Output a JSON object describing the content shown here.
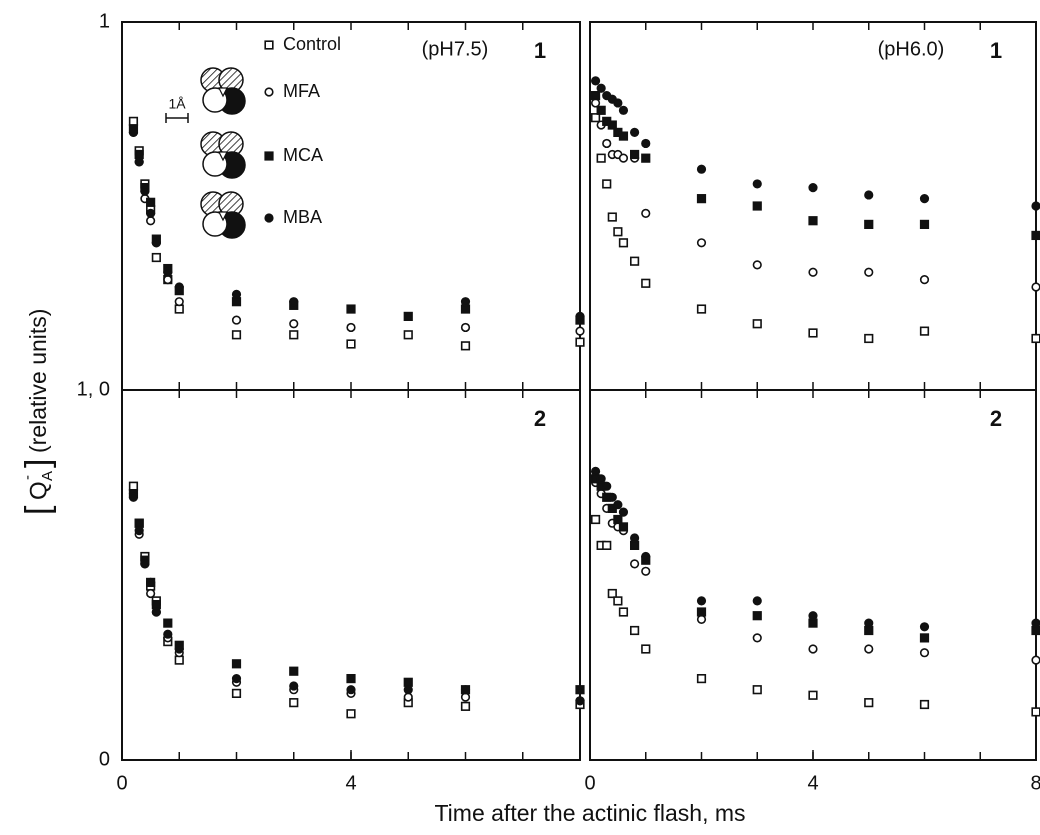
{
  "figure": {
    "xlabel": "Time after the actinic flash, ms",
    "ylabel_open": "[",
    "ylabel_symbol": "Q",
    "ylabel_subscript": "A",
    "ylabel_superscript": "-",
    "ylabel_close": "]",
    "ylabel": "(relative units)",
    "scale_label": "1Å"
  },
  "chart_data": [
    {
      "type": "scatter",
      "annotations": [
        "(pH7.5)",
        "1"
      ],
      "legend": true,
      "x": [
        0.1,
        0.2,
        0.3,
        0.4,
        0.5,
        0.6,
        0.8,
        1,
        2,
        3,
        4,
        5,
        6,
        8
      ],
      "xlim": [
        0,
        8
      ],
      "ylim": [
        0,
        1
      ],
      "yticks": [
        1
      ],
      "xminorticks": [
        1,
        2,
        3,
        4,
        5,
        6,
        7
      ],
      "series": [
        {
          "name": "Control",
          "marker": "square-open",
          "color": "#111111",
          "values": [
            null,
            0.73,
            0.65,
            0.56,
            0.49,
            0.36,
            0.3,
            0.22,
            0.15,
            0.15,
            0.125,
            0.15,
            0.12,
            0.13
          ]
        },
        {
          "name": "MFA",
          "marker": "circle-open",
          "color": "#111111",
          "values": [
            null,
            0.7,
            0.62,
            0.52,
            0.46,
            0.4,
            0.3,
            0.24,
            0.19,
            0.18,
            0.17,
            null,
            0.17,
            0.16
          ]
        },
        {
          "name": "MCA",
          "marker": "square-filled",
          "color": "#111111",
          "values": [
            null,
            0.71,
            0.64,
            0.55,
            0.51,
            0.41,
            0.33,
            0.27,
            0.24,
            0.23,
            0.22,
            0.2,
            0.22,
            0.19
          ]
        },
        {
          "name": "MBA",
          "marker": "circle-filled",
          "color": "#111111",
          "values": [
            null,
            0.7,
            0.62,
            0.54,
            0.48,
            0.4,
            0.32,
            0.28,
            0.26,
            0.24,
            null,
            null,
            0.24,
            0.2
          ]
        }
      ]
    },
    {
      "type": "scatter",
      "annotations": [
        "(pH6.0)",
        "1"
      ],
      "x": [
        0.1,
        0.2,
        0.3,
        0.4,
        0.5,
        0.6,
        0.8,
        1,
        2,
        3,
        4,
        5,
        6,
        8
      ],
      "xlim": [
        0,
        8
      ],
      "ylim": [
        0,
        1
      ],
      "xminorticks": [
        1,
        2,
        3,
        4,
        5,
        6,
        7
      ],
      "series": [
        {
          "name": "Control",
          "marker": "square-open",
          "color": "#111111",
          "values": [
            0.74,
            0.63,
            0.56,
            0.47,
            0.43,
            0.4,
            0.35,
            0.29,
            0.22,
            0.18,
            0.155,
            0.14,
            0.16,
            0.14
          ]
        },
        {
          "name": "MFA",
          "marker": "circle-open",
          "color": "#111111",
          "values": [
            0.78,
            0.72,
            0.67,
            0.64,
            0.64,
            0.63,
            0.63,
            0.48,
            0.4,
            0.34,
            0.32,
            0.32,
            0.3,
            0.28
          ]
        },
        {
          "name": "MCA",
          "marker": "square-filled",
          "color": "#111111",
          "values": [
            0.8,
            0.76,
            0.73,
            0.72,
            0.7,
            0.69,
            0.64,
            0.63,
            0.52,
            0.5,
            0.46,
            0.45,
            0.45,
            0.42
          ]
        },
        {
          "name": "MBA",
          "marker": "circle-filled",
          "color": "#111111",
          "values": [
            0.84,
            0.82,
            0.8,
            0.79,
            0.78,
            0.76,
            0.7,
            0.67,
            0.6,
            0.56,
            0.55,
            0.53,
            0.52,
            0.5
          ]
        }
      ]
    },
    {
      "type": "scatter",
      "annotations": [
        "2"
      ],
      "x": [
        0.1,
        0.2,
        0.3,
        0.4,
        0.5,
        0.6,
        0.8,
        1,
        2,
        3,
        4,
        5,
        6,
        8
      ],
      "xlim": [
        0,
        8
      ],
      "ylim": [
        0,
        1
      ],
      "yticks": [
        {
          "value": 1,
          "label": "1, 0"
        },
        0
      ],
      "xticks": [
        0,
        4
      ],
      "xminorticks": [
        1,
        2,
        3,
        4,
        5,
        6,
        7
      ],
      "series": [
        {
          "name": "Control",
          "marker": "square-open",
          "color": "#111111",
          "values": [
            null,
            0.74,
            0.64,
            0.55,
            0.47,
            0.43,
            0.32,
            0.27,
            0.18,
            0.155,
            0.125,
            0.155,
            0.145,
            0.15
          ]
        },
        {
          "name": "MFA",
          "marker": "circle-open",
          "color": "#111111",
          "values": [
            null,
            0.72,
            0.61,
            0.53,
            0.45,
            0.4,
            0.33,
            0.29,
            0.21,
            0.19,
            0.18,
            0.17,
            0.17,
            0.16
          ]
        },
        {
          "name": "MCA",
          "marker": "square-filled",
          "color": "#111111",
          "values": [
            null,
            0.72,
            0.64,
            0.54,
            0.48,
            0.42,
            0.37,
            0.31,
            0.26,
            0.24,
            0.22,
            0.21,
            0.19,
            0.19
          ]
        },
        {
          "name": "MBA",
          "marker": "circle-filled",
          "color": "#111111",
          "values": [
            null,
            0.71,
            0.62,
            0.53,
            0.48,
            0.4,
            0.34,
            0.3,
            0.22,
            0.2,
            0.19,
            0.19,
            0.19,
            0.16
          ]
        }
      ]
    },
    {
      "type": "scatter",
      "annotations": [
        "2"
      ],
      "x": [
        0.1,
        0.2,
        0.3,
        0.4,
        0.5,
        0.6,
        0.8,
        1,
        2,
        3,
        4,
        5,
        6,
        8
      ],
      "xlim": [
        0,
        8
      ],
      "ylim": [
        0,
        1
      ],
      "xticks": [
        0,
        4,
        8
      ],
      "xminorticks": [
        1,
        2,
        3,
        4,
        5,
        6,
        7
      ],
      "series": [
        {
          "name": "Control",
          "marker": "square-open",
          "color": "#111111",
          "values": [
            0.65,
            0.58,
            0.58,
            0.45,
            0.43,
            0.4,
            0.35,
            0.3,
            0.22,
            0.19,
            0.175,
            0.155,
            0.15,
            0.13
          ]
        },
        {
          "name": "MFA",
          "marker": "circle-open",
          "color": "#111111",
          "values": [
            0.75,
            0.72,
            0.68,
            0.64,
            0.63,
            0.62,
            0.53,
            0.51,
            0.38,
            0.33,
            0.3,
            0.3,
            0.29,
            0.27
          ]
        },
        {
          "name": "MCA",
          "marker": "square-filled",
          "color": "#111111",
          "values": [
            0.76,
            0.74,
            0.71,
            0.68,
            0.65,
            0.63,
            0.58,
            0.54,
            0.4,
            0.39,
            0.37,
            0.35,
            0.33,
            0.35
          ]
        },
        {
          "name": "MBA",
          "marker": "circle-filled",
          "color": "#111111",
          "values": [
            0.78,
            0.76,
            0.74,
            0.71,
            0.69,
            0.67,
            0.6,
            0.55,
            0.43,
            0.43,
            0.39,
            0.37,
            0.36,
            0.37
          ]
        }
      ]
    }
  ]
}
